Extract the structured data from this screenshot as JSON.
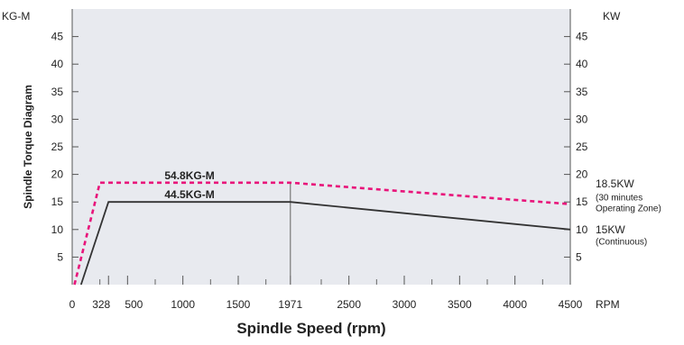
{
  "chart_data": {
    "type": "line",
    "title": "",
    "xlabel": "Spindle Speed (rpm)",
    "ylabel": "Spindle Torque Diagram",
    "y_left_unit": "KG-M",
    "y_right_unit": "KW",
    "x_unit": "RPM",
    "xlim": [
      0,
      4500
    ],
    "ylim": [
      0,
      50
    ],
    "x_ticks": [
      {
        "value": 0,
        "label": "0"
      },
      {
        "value": 328,
        "label": "328"
      },
      {
        "value": 500,
        "label": "500"
      },
      {
        "value": 1000,
        "label": "1000"
      },
      {
        "value": 1500,
        "label": "1500"
      },
      {
        "value": 1971,
        "label": "1971"
      },
      {
        "value": 2500,
        "label": "2500"
      },
      {
        "value": 3000,
        "label": "3000"
      },
      {
        "value": 3500,
        "label": "3500"
      },
      {
        "value": 4000,
        "label": "4000"
      },
      {
        "value": 4500,
        "label": "4500"
      }
    ],
    "x_minor_ticks": [
      250,
      750,
      1250,
      1750,
      2250,
      2750,
      3250,
      3750,
      4250
    ],
    "y_left_ticks": [
      {
        "value": 5,
        "label": "5"
      },
      {
        "value": 10,
        "label": "10"
      },
      {
        "value": 15,
        "label": "15"
      },
      {
        "value": 20,
        "label": "20"
      },
      {
        "value": 25,
        "label": "25"
      },
      {
        "value": 30,
        "label": "30"
      },
      {
        "value": 35,
        "label": "35"
      },
      {
        "value": 40,
        "label": "40"
      },
      {
        "value": 45,
        "label": "45"
      }
    ],
    "y_right_ticks": [
      {
        "value": 5,
        "label": "5"
      },
      {
        "value": 10,
        "label": "10"
      },
      {
        "value": 15,
        "label": "15"
      },
      {
        "value": 20,
        "label": "20"
      },
      {
        "value": 25,
        "label": "25"
      },
      {
        "value": 30,
        "label": "30"
      },
      {
        "value": 35,
        "label": "35"
      },
      {
        "value": 40,
        "label": "40"
      },
      {
        "value": 45,
        "label": "45"
      }
    ],
    "series": [
      {
        "label": "54.8KG-M",
        "style": "dashed",
        "color": "#e8147a",
        "points": [
          [
            20,
            0
          ],
          [
            250,
            18.5
          ],
          [
            1971,
            18.5
          ],
          [
            4500,
            14.6
          ]
        ]
      },
      {
        "label": "44.5KG-M",
        "style": "solid",
        "color": "#333333",
        "points": [
          [
            80,
            0
          ],
          [
            328,
            15
          ],
          [
            1971,
            15
          ],
          [
            4500,
            10
          ]
        ]
      }
    ],
    "reference_lines": [
      {
        "axis": "x",
        "value": 1971,
        "color": "#777777"
      }
    ],
    "right_annotations": [
      {
        "lines": [
          "18.5KW"
        ],
        "style": "main"
      },
      {
        "lines": [
          "(30 minutes",
          "Operating Zone)"
        ],
        "style": "small"
      },
      {
        "lines": [
          "15KW"
        ],
        "style": "main"
      },
      {
        "lines": [
          "(Continuous)"
        ],
        "style": "small"
      }
    ],
    "plot_background": "#e8eaef",
    "grid": false,
    "legend": "none"
  }
}
